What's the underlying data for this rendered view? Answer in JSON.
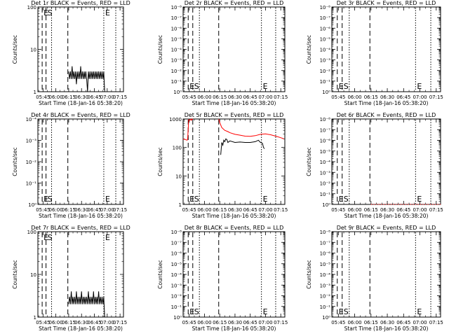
{
  "figure": {
    "x_ticks": [
      "05:45",
      "06:00",
      "06:15",
      "06:30",
      "06:45",
      "07:00",
      "07:15"
    ],
    "x_tick_minutes": [
      0,
      15,
      30,
      45,
      60,
      75,
      90
    ],
    "x_range_minutes": [
      -6,
      94
    ],
    "x_label": "Start Time (18-Jan-16 05:38:20)",
    "y_label": "Counts/sec",
    "series_colors": {
      "events": "#000000",
      "lld": "#ff0000"
    },
    "markers": [
      {
        "text": "E",
        "type": "dashed",
        "x_minutes": -1
      },
      {
        "text": "S",
        "type": "dashed",
        "x_minutes": 3.5
      },
      {
        "type": "dotted",
        "x_minutes": 10
      },
      {
        "type": "dashed",
        "x_minutes": 29
      },
      {
        "text": "E",
        "type": "dotted",
        "x_minutes": 71
      },
      {
        "type": "dotted",
        "x_minutes": 85
      }
    ]
  },
  "chart_data": [
    {
      "type": "line",
      "title": "Det 1r BLACK = Events, RED = LLD",
      "y_scale": "log",
      "ylim": [
        1,
        100
      ],
      "y_ticks": [
        "1",
        "10",
        "100"
      ],
      "series": [
        {
          "x": [
            30,
            31,
            32,
            33,
            34,
            35,
            36,
            37,
            38,
            39,
            40,
            41,
            42,
            43,
            44,
            45,
            46,
            47,
            48,
            49,
            50,
            51,
            52,
            53,
            54,
            55,
            56,
            57,
            58,
            59,
            60,
            61,
            62,
            63,
            64,
            65,
            66,
            67,
            68,
            69,
            70,
            71,
            72
          ],
          "values": [
            3,
            2,
            3,
            2,
            4,
            2,
            3,
            2,
            3,
            1.5,
            3,
            2,
            3,
            2,
            4,
            2,
            3,
            2,
            3,
            2,
            3,
            2,
            1,
            3,
            2,
            3,
            2,
            3,
            2,
            3,
            2,
            3,
            2,
            3,
            2,
            3,
            2,
            3,
            2,
            3,
            2,
            3,
            1
          ],
          "color": "events"
        }
      ]
    },
    {
      "type": "line",
      "title": "Det 2r BLACK = Events, RED = LLD",
      "y_scale": "log",
      "ylim": [
        1,
        100000000
      ],
      "y_ticks": [
        "10⁰",
        "10⁻¹",
        "10⁻²",
        "10⁻³",
        "10⁻⁴",
        "10⁻⁵",
        "10⁻⁶",
        "10⁻⁷",
        "10⁻⁸"
      ],
      "series": []
    },
    {
      "type": "line",
      "title": "Det 3r BLACK = Events, RED = LLD",
      "y_scale": "log",
      "ylim": [
        1,
        100000000
      ],
      "y_ticks": [
        "10⁰",
        "10⁻¹",
        "10⁻²",
        "10⁻³",
        "10⁻⁴",
        "10⁻⁵",
        "10⁻⁶",
        "10⁻⁷",
        "10⁻⁸"
      ],
      "series": []
    },
    {
      "type": "line",
      "title": "Det 4r BLACK = Events, RED = LLD",
      "y_scale": "log",
      "ylim": [
        1,
        10000
      ],
      "y_ticks": [
        "10⁰",
        "10⁻¹",
        "10⁻²",
        "10⁻³",
        "10⁻⁴"
      ],
      "series": []
    },
    {
      "type": "line",
      "title": "Det 5r BLACK = Events, RED = LLD",
      "y_scale": "log",
      "ylim": [
        1,
        1000
      ],
      "y_ticks": [
        "1",
        "10",
        "100",
        "1000"
      ],
      "series": [
        {
          "x": [
            -6,
            -2,
            -1.5,
            -0.5,
            0.5,
            1,
            1.5,
            2,
            2.5,
            3,
            3.5
          ],
          "values": [
            200,
            180,
            200,
            950,
            900,
            950,
            1000,
            900,
            950,
            1000,
            950
          ],
          "color": "lld"
        },
        {
          "x": [
            29,
            30,
            32,
            35,
            38,
            40,
            45,
            50,
            55,
            60,
            65,
            70,
            75,
            80,
            85,
            90,
            93
          ],
          "values": [
            1000,
            750,
            500,
            400,
            360,
            330,
            290,
            270,
            250,
            245,
            260,
            290,
            300,
            280,
            250,
            220,
            200
          ],
          "color": "lld"
        },
        {
          "x": [
            31,
            32,
            33,
            34,
            35,
            36,
            37,
            38,
            40,
            45,
            50,
            55,
            60,
            65,
            68,
            70,
            72,
            73,
            74
          ],
          "values": [
            55,
            150,
            120,
            180,
            160,
            200,
            190,
            150,
            170,
            150,
            155,
            150,
            150,
            160,
            180,
            150,
            140,
            100,
            90
          ],
          "color": "events"
        }
      ]
    },
    {
      "type": "line",
      "title": "Det 6r BLACK = Events, RED = LLD",
      "y_scale": "log",
      "ylim": [
        1,
        100000000
      ],
      "y_ticks": [
        "10⁰",
        "10⁻¹",
        "10⁻²",
        "10⁻³",
        "10⁻⁴",
        "10⁻⁵",
        "10⁻⁶",
        "10⁻⁷",
        "10⁻⁸"
      ],
      "series": [
        {
          "x": [
            30,
            94
          ],
          "values": [
            1,
            1
          ],
          "color": "lld",
          "dotted": true
        }
      ]
    },
    {
      "type": "line",
      "title": "Det 7r BLACK = Events, RED = LLD",
      "y_scale": "log",
      "ylim": [
        1,
        100
      ],
      "y_ticks": [
        "1",
        "10",
        "100"
      ],
      "series": [
        {
          "x": [
            30,
            31,
            32,
            33,
            34,
            35,
            36,
            37,
            38,
            39,
            40,
            41,
            42,
            43,
            44,
            45,
            46,
            47,
            48,
            49,
            50,
            51,
            52,
            53,
            54,
            55,
            56,
            57,
            58,
            59,
            60,
            61,
            62,
            63,
            64,
            65,
            66,
            67,
            68,
            69,
            70,
            71,
            72
          ],
          "values": [
            2,
            3,
            2,
            4,
            2,
            3,
            2,
            3,
            2,
            4,
            2,
            3,
            2,
            3,
            2,
            4,
            2,
            3,
            2,
            3,
            2,
            3,
            2,
            4,
            2,
            3,
            2,
            3,
            2,
            4,
            2,
            3,
            2,
            3,
            2,
            4,
            2,
            3,
            2,
            3,
            2,
            3,
            1
          ],
          "color": "events"
        }
      ]
    },
    {
      "type": "line",
      "title": "Det 8r BLACK = Events, RED = LLD",
      "y_scale": "log",
      "ylim": [
        1,
        100000000
      ],
      "y_ticks": [
        "10⁰",
        "10⁻¹",
        "10⁻²",
        "10⁻³",
        "10⁻⁴",
        "10⁻⁵",
        "10⁻⁶",
        "10⁻⁷",
        "10⁻⁸"
      ],
      "series": []
    },
    {
      "type": "line",
      "title": "Det 9r BLACK = Events, RED = LLD",
      "y_scale": "log",
      "ylim": [
        1,
        100000000
      ],
      "y_ticks": [
        "10⁰",
        "10⁻¹",
        "10⁻²",
        "10⁻³",
        "10⁻⁴",
        "10⁻⁵",
        "10⁻⁶",
        "10⁻⁷",
        "10⁻⁸"
      ],
      "series": []
    }
  ]
}
